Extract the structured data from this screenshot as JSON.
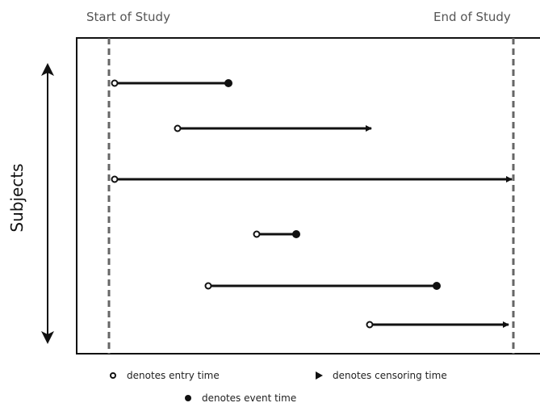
{
  "header": {
    "start_label": "Start of Study",
    "end_label": "End of Study"
  },
  "axis_label": "Subjects",
  "legend": [
    {
      "label": "denotes entry time"
    },
    {
      "label": "denotes censoring time"
    },
    {
      "label": "denotes event time"
    }
  ]
}
